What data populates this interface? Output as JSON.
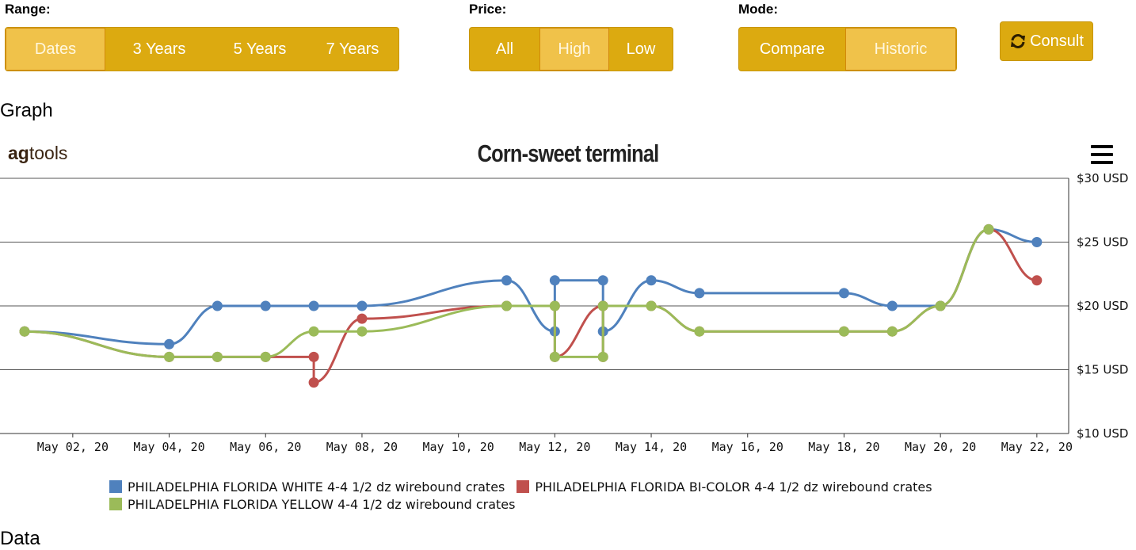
{
  "controls": {
    "range": {
      "label": "Range:",
      "options": [
        "Dates",
        "3 Years",
        "5 Years",
        "7 Years"
      ],
      "selected": "Dates"
    },
    "price": {
      "label": "Price:",
      "options": [
        "All",
        "High",
        "Low"
      ],
      "selected": "High"
    },
    "mode": {
      "label": "Mode:",
      "options": [
        "Compare",
        "Historic"
      ],
      "selected": "Historic"
    },
    "consult_label": "Consult"
  },
  "section_graph": "Graph",
  "section_data": "Data",
  "logo": {
    "bold": "ag",
    "rest": "tools"
  },
  "icons": {
    "consult": "refresh-icon",
    "menu": "hamburger-menu-icon"
  },
  "colors": {
    "button": "#dcaa10",
    "button_active": "#f0c24a",
    "white": "#4f81bd",
    "bicolor": "#c0504d",
    "yellow": "#9bbb59"
  },
  "chart_data": {
    "type": "line",
    "title": "Corn-sweet terminal",
    "x_tick_labels": [
      "May 02, 20",
      "May 04, 20",
      "May 06, 20",
      "May 08, 20",
      "May 10, 20",
      "May 12, 20",
      "May 14, 20",
      "May 16, 20",
      "May 18, 20",
      "May 20, 20",
      "May 22, 20"
    ],
    "y_tick_labels": [
      "$10 USD",
      "$15 USD",
      "$20 USD",
      "$25 USD",
      "$30 USD"
    ],
    "ylim": [
      10,
      30
    ],
    "y_axis_side": "right",
    "grid": true,
    "legend_placement": "bottom",
    "series": [
      {
        "name": "PHILADELPHIA FLORIDA WHITE 4-4 1/2 dz wirebound crates",
        "color": "#4f81bd",
        "points": [
          [
            "May 01, 20",
            18
          ],
          [
            "May 04, 20",
            17
          ],
          [
            "May 05, 20",
            20
          ],
          [
            "May 06, 20",
            20
          ],
          [
            "May 07, 20",
            20
          ],
          [
            "May 08, 20",
            20
          ],
          [
            "May 11, 20",
            22
          ],
          [
            "May 12, 20",
            18
          ],
          [
            "May 12, 20",
            22
          ],
          [
            "May 13, 20",
            22
          ],
          [
            "May 13, 20",
            18
          ],
          [
            "May 14, 20",
            22
          ],
          [
            "May 15, 20",
            21
          ],
          [
            "May 18, 20",
            21
          ],
          [
            "May 19, 20",
            20
          ],
          [
            "May 20, 20",
            20
          ],
          [
            "May 21, 20",
            26
          ],
          [
            "May 22, 20",
            25
          ]
        ]
      },
      {
        "name": "PHILADELPHIA FLORIDA BI-COLOR 4-4 1/2 dz wirebound crates",
        "color": "#c0504d",
        "points": [
          [
            "May 01, 20",
            18
          ],
          [
            "May 04, 20",
            16
          ],
          [
            "May 05, 20",
            16
          ],
          [
            "May 06, 20",
            16
          ],
          [
            "May 07, 20",
            16
          ],
          [
            "May 07, 20",
            14
          ],
          [
            "May 08, 20",
            19
          ],
          [
            "May 11, 20",
            20
          ],
          [
            "May 12, 20",
            20
          ],
          [
            "May 12, 20",
            16
          ],
          [
            "May 13, 20",
            20
          ],
          [
            "May 13, 20",
            16
          ],
          [
            "May 13, 20",
            20
          ],
          [
            "May 14, 20",
            20
          ],
          [
            "May 15, 20",
            18
          ],
          [
            "May 18, 20",
            18
          ],
          [
            "May 19, 20",
            18
          ],
          [
            "May 20, 20",
            20
          ],
          [
            "May 21, 20",
            26
          ],
          [
            "May 22, 20",
            22
          ]
        ]
      },
      {
        "name": "PHILADELPHIA FLORIDA YELLOW 4-4 1/2 dz wirebound crates",
        "color": "#9bbb59",
        "points": [
          [
            "May 01, 20",
            18
          ],
          [
            "May 04, 20",
            16
          ],
          [
            "May 05, 20",
            16
          ],
          [
            "May 06, 20",
            16
          ],
          [
            "May 07, 20",
            18
          ],
          [
            "May 08, 20",
            18
          ],
          [
            "May 11, 20",
            20
          ],
          [
            "May 12, 20",
            20
          ],
          [
            "May 12, 20",
            16
          ],
          [
            "May 13, 20",
            16
          ],
          [
            "May 13, 20",
            20
          ],
          [
            "May 14, 20",
            20
          ],
          [
            "May 15, 20",
            18
          ],
          [
            "May 18, 20",
            18
          ],
          [
            "May 19, 20",
            18
          ],
          [
            "May 20, 20",
            20
          ],
          [
            "May 21, 20",
            26
          ]
        ]
      }
    ]
  }
}
